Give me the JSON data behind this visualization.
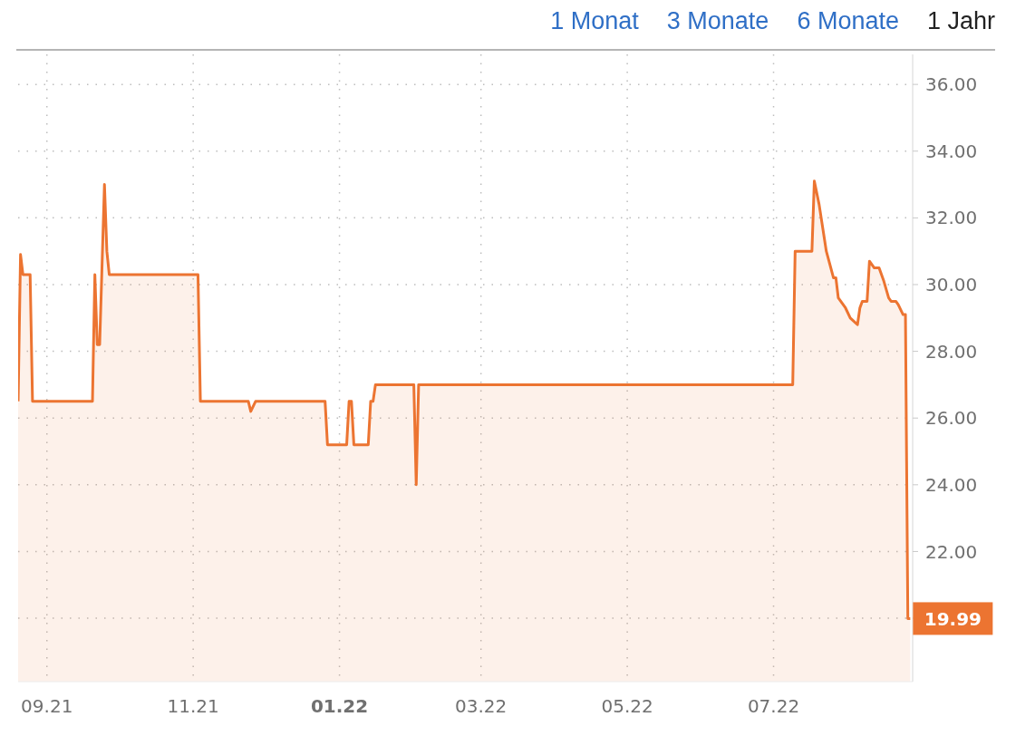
{
  "chart_data": {
    "type": "area",
    "color": "#ec7431",
    "x": [
      "2021-08-20",
      "2021-08-21",
      "2021-08-22",
      "2021-08-25",
      "2021-08-26",
      "2021-09-20",
      "2021-09-21",
      "2021-09-22",
      "2021-09-23",
      "2021-09-25",
      "2021-09-26",
      "2021-09-27",
      "2021-11-03",
      "2021-11-04",
      "2021-11-24",
      "2021-11-25",
      "2021-11-27",
      "2021-12-26",
      "2021-12-27",
      "2022-01-04",
      "2022-01-05",
      "2022-01-06",
      "2022-01-07",
      "2022-01-13",
      "2022-01-14",
      "2022-01-15",
      "2022-01-16",
      "2022-02-01",
      "2022-02-02",
      "2022-02-03",
      "2022-07-09",
      "2022-07-10",
      "2022-07-17",
      "2022-07-18",
      "2022-07-20",
      "2022-07-23",
      "2022-07-26",
      "2022-07-27",
      "2022-07-28",
      "2022-07-31",
      "2022-08-02",
      "2022-08-05",
      "2022-08-06",
      "2022-08-07",
      "2022-08-09",
      "2022-08-10",
      "2022-08-12",
      "2022-08-14",
      "2022-08-16",
      "2022-08-18",
      "2022-08-19",
      "2022-08-21",
      "2022-08-22",
      "2022-08-24",
      "2022-08-25",
      "2022-08-26",
      "2022-08-27"
    ],
    "values": [
      26.5,
      30.9,
      30.3,
      30.3,
      26.5,
      26.5,
      30.3,
      28.2,
      28.2,
      33.0,
      31.0,
      30.3,
      30.3,
      26.5,
      26.5,
      26.2,
      26.5,
      26.5,
      25.2,
      25.2,
      26.5,
      26.5,
      25.2,
      25.2,
      26.5,
      26.5,
      27.0,
      27.0,
      24.0,
      27.0,
      27.0,
      31.0,
      31.0,
      33.1,
      32.4,
      31.0,
      30.2,
      30.2,
      29.6,
      29.3,
      29.0,
      28.8,
      29.3,
      29.5,
      29.5,
      30.7,
      30.5,
      30.5,
      30.1,
      29.6,
      29.5,
      29.5,
      29.4,
      29.1,
      29.1,
      19.99,
      19.99
    ],
    "xlim": [
      "2021-08-20",
      "2022-08-28"
    ],
    "xticks": [
      {
        "value": "2021-09-01",
        "label": "09.21"
      },
      {
        "value": "2021-11-01",
        "label": "11.21"
      },
      {
        "value": "2022-01-01",
        "label": "01.22"
      },
      {
        "value": "2022-03-01",
        "label": "03.22"
      },
      {
        "value": "2022-05-01",
        "label": "05.22"
      },
      {
        "value": "2022-07-01",
        "label": "07.22"
      }
    ],
    "ylim": [
      18.1,
      36.9
    ],
    "yticks": [
      {
        "value": 20,
        "label": null
      },
      {
        "value": 22,
        "label": "22.00"
      },
      {
        "value": 24,
        "label": "24.00"
      },
      {
        "value": 26,
        "label": "26.00"
      },
      {
        "value": 28,
        "label": "28.00"
      },
      {
        "value": 30,
        "label": "30.00"
      },
      {
        "value": 32,
        "label": "32.00"
      },
      {
        "value": 34,
        "label": "34.00"
      },
      {
        "value": 36,
        "label": "36.00"
      }
    ],
    "grid": true,
    "annotations": [
      {
        "text": "19.99",
        "x": "2022-08-27",
        "y": 19.99
      },
      "1 Monat",
      "3 Monate",
      "6 Monate",
      "1 Jahr"
    ]
  }
}
